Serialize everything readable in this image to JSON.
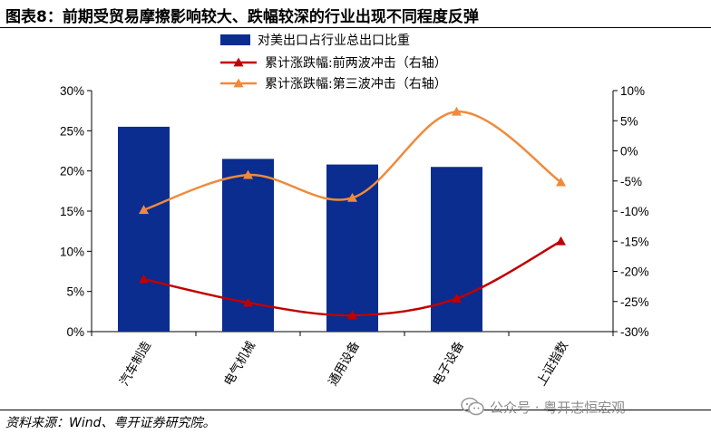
{
  "title": "图表8：前期受贸易摩擦影响较大、跌幅较深的行业出现不同程度反弹",
  "source": "资料来源：Wind、粤开证券研究院。",
  "watermark": "公众号 · 粤开志恒宏观",
  "colors": {
    "bar": "#0a2d8f",
    "line1": "#c00000",
    "line2": "#ef8a3c"
  },
  "chart_data": {
    "type": "bar+line",
    "categories": [
      "汽车制造",
      "电气机械",
      "通用设备",
      "电子设备",
      "上证指数"
    ],
    "left_axis": {
      "ylim": [
        0,
        30
      ],
      "ticks": [
        0,
        5,
        10,
        15,
        20,
        25,
        30
      ],
      "tick_labels": [
        "0%",
        "5%",
        "10%",
        "15%",
        "20%",
        "25%",
        "30%"
      ]
    },
    "right_axis": {
      "ylim": [
        -30,
        10
      ],
      "ticks": [
        10,
        5,
        0,
        -5,
        -10,
        -15,
        -20,
        -25,
        -30
      ],
      "tick_labels": [
        "10%",
        "5%",
        "0%",
        "-5%",
        "-10%",
        "-15%",
        "-20%",
        "-25%",
        "-30%"
      ]
    },
    "series": [
      {
        "name": "对美出口占行业总出口比重",
        "type": "bar",
        "axis": "left",
        "values": [
          25.5,
          21.5,
          20.8,
          20.5,
          null
        ]
      },
      {
        "name": "累计涨跌幅:前两波冲击（右轴）",
        "type": "line",
        "axis": "right",
        "marker": "triangle",
        "values": [
          -21.3,
          -25.2,
          -27.3,
          -24.5,
          -15.0
        ]
      },
      {
        "name": "累计涨跌幅:第三波冲击（右轴）",
        "type": "line",
        "axis": "right",
        "marker": "triangle",
        "values": [
          -9.8,
          -4.0,
          -7.8,
          6.5,
          -5.2
        ]
      }
    ]
  }
}
